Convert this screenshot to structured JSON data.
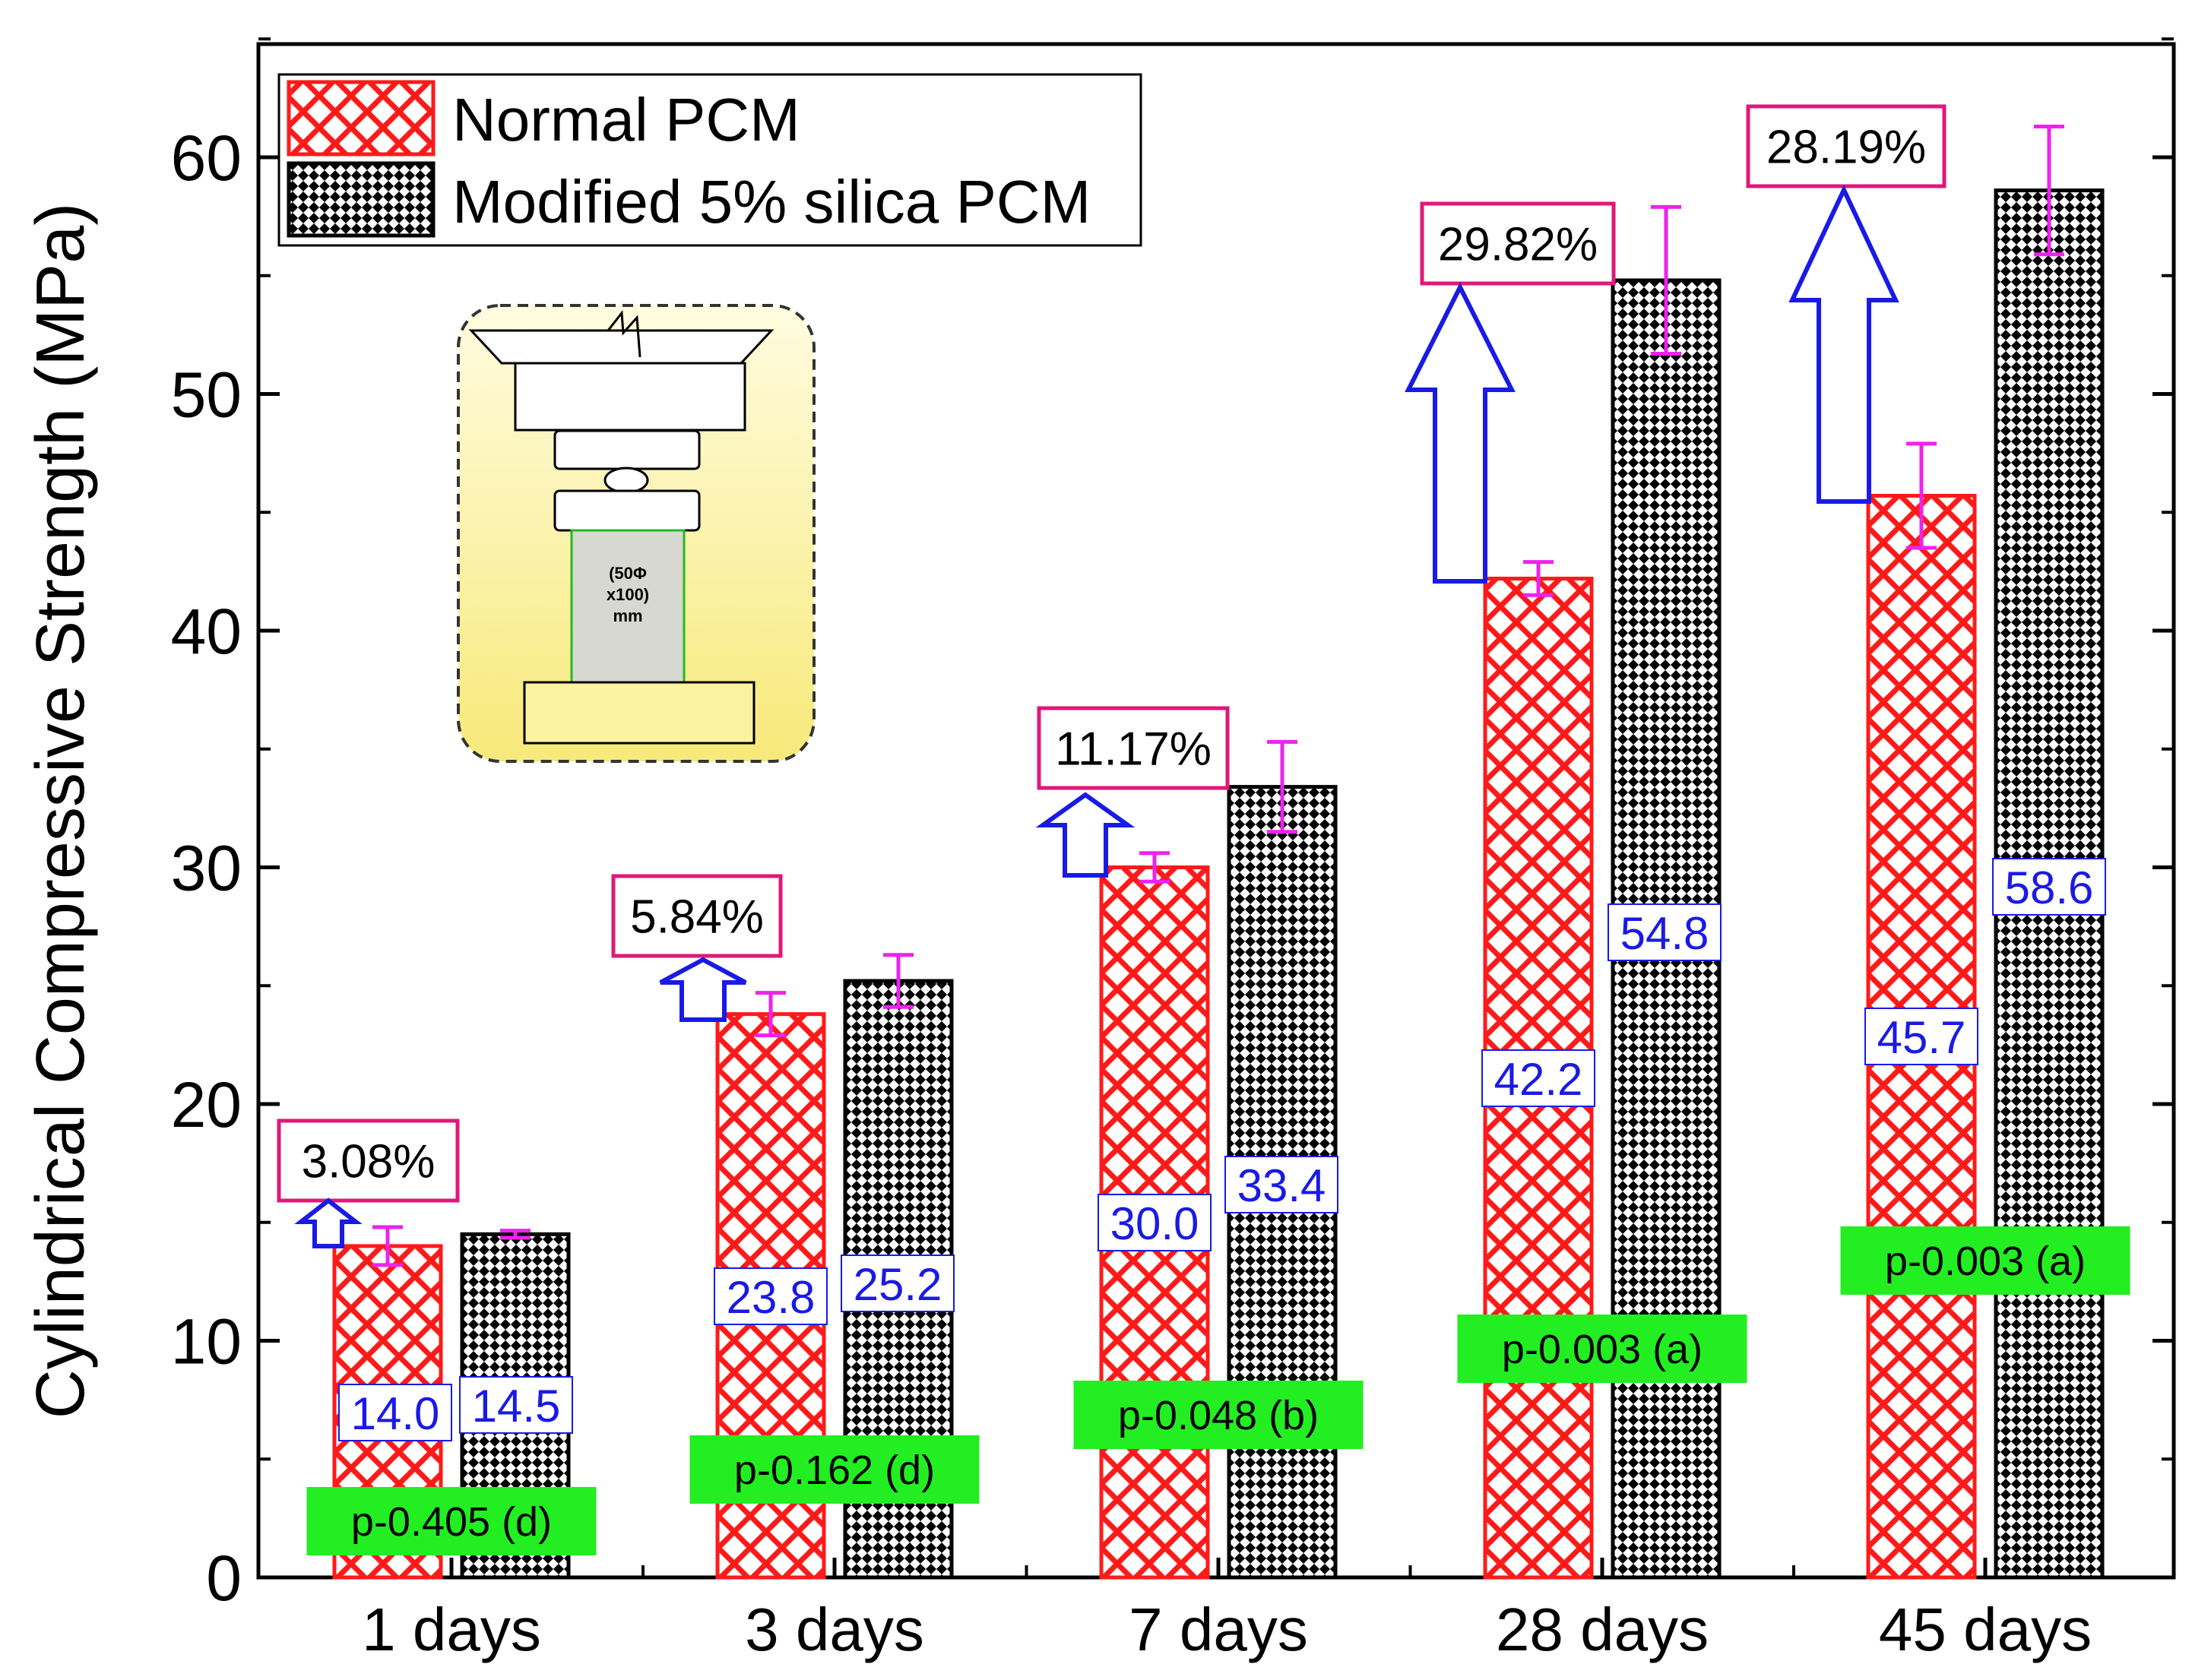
{
  "chart_data": {
    "type": "bar",
    "title": "",
    "xlabel": "",
    "ylabel": "Cylindrical Compressive Strength (MPa)",
    "ylim": [
      0,
      65
    ],
    "yticks": [
      0,
      10,
      20,
      30,
      40,
      50,
      60
    ],
    "categories": [
      "1 days",
      "3 days",
      "7 days",
      "28 days",
      "45 days"
    ],
    "series": [
      {
        "name": "Normal PCM",
        "values": [
          14.0,
          23.8,
          30.0,
          42.2,
          45.7
        ],
        "labels": [
          "14.0",
          "23.8",
          "30.0",
          "42.2",
          "45.7"
        ],
        "errors": [
          0.8,
          0.9,
          0.6,
          0.7,
          2.2
        ],
        "color": "#ff1a1a",
        "pattern": "crosshatch"
      },
      {
        "name": "Modified 5% silica PCM",
        "values": [
          14.5,
          25.2,
          33.4,
          54.8,
          58.6
        ],
        "labels": [
          "14.5",
          "25.2",
          "33.4",
          "54.8",
          "58.6"
        ],
        "errors": [
          0.15,
          1.1,
          1.9,
          3.1,
          2.7
        ],
        "color": "#000000",
        "pattern": "checker"
      }
    ],
    "increase_labels": [
      "3.08%",
      "5.84%",
      "11.17%",
      "29.82%",
      "28.19%"
    ],
    "p_values": [
      "p-0.405 (d)",
      "p-0.162 (d)",
      "p-0.048 (b)",
      "p-0.003 (a)",
      "p-0.003 (a)"
    ],
    "legend_position": "top-left",
    "inset_text": [
      "(50Φ",
      "x100)",
      "mm"
    ],
    "colors": {
      "error_bar": "#ee22ee",
      "value_label": "#1a1ae6",
      "pct_box_border": "#e0187a",
      "p_box_fill": "#22ee22",
      "arrow": "#1a1ae6",
      "inset_fill": "#fbf3a0"
    }
  }
}
